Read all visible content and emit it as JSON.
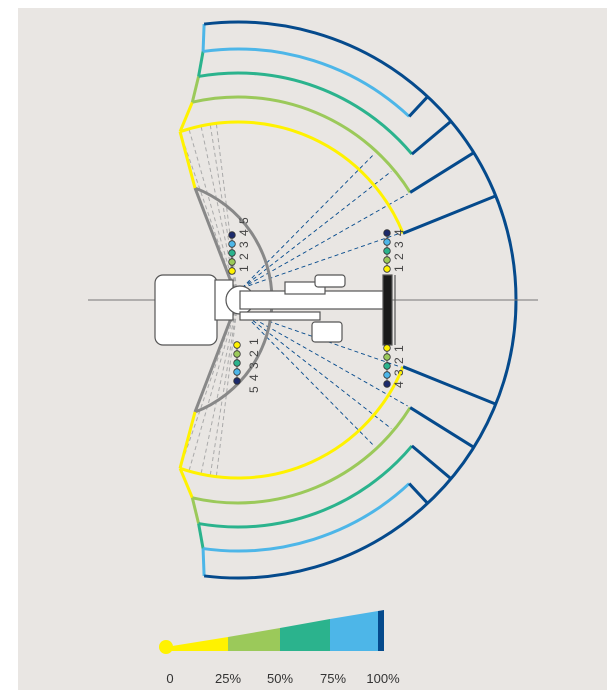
{
  "markers": {
    "left_top": "1 2 3 4 5",
    "left_bottom": "5 4 3 2 1",
    "right_top": "1 2 3 4",
    "right_bottom": "4 3 2 1"
  },
  "legend": {
    "labels": [
      "0",
      "25%",
      "50%",
      "75%",
      "100%"
    ]
  }
}
